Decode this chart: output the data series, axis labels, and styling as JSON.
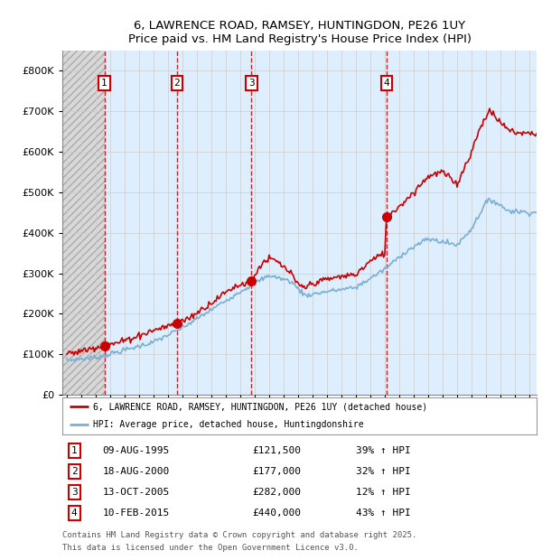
{
  "title": "6, LAWRENCE ROAD, RAMSEY, HUNTINGDON, PE26 1UY",
  "subtitle": "Price paid vs. HM Land Registry's House Price Index (HPI)",
  "ylim": [
    0,
    850000
  ],
  "yticks": [
    0,
    100000,
    200000,
    300000,
    400000,
    500000,
    600000,
    700000,
    800000
  ],
  "ytick_labels": [
    "£0",
    "£100K",
    "£200K",
    "£300K",
    "£400K",
    "£500K",
    "£600K",
    "£700K",
    "£800K"
  ],
  "xlim_start": 1992.7,
  "xlim_end": 2025.5,
  "purchases": [
    {
      "label": "1",
      "date": "09-AUG-1995",
      "year": 1995.61,
      "price": 121500,
      "hpi_pct": "39% ↑ HPI"
    },
    {
      "label": "2",
      "date": "18-AUG-2000",
      "year": 2000.63,
      "price": 177000,
      "hpi_pct": "32% ↑ HPI"
    },
    {
      "label": "3",
      "date": "13-OCT-2005",
      "year": 2005.78,
      "price": 282000,
      "hpi_pct": "12% ↑ HPI"
    },
    {
      "label": "4",
      "date": "10-FEB-2015",
      "year": 2015.11,
      "price": 440000,
      "hpi_pct": "43% ↑ HPI"
    }
  ],
  "hpi_line_color": "#7bafd4",
  "price_line_color": "#cc0000",
  "grid_color": "#cccccc",
  "bg_color": "#ddeeff",
  "hatch_bg_color": "#d8d8d8",
  "legend_line1": "6, LAWRENCE ROAD, RAMSEY, HUNTINGDON, PE26 1UY (detached house)",
  "legend_line2": "HPI: Average price, detached house, Huntingdonshire",
  "footer1": "Contains HM Land Registry data © Crown copyright and database right 2025.",
  "footer2": "This data is licensed under the Open Government Licence v3.0.",
  "xtick_years": [
    1993,
    1994,
    1995,
    1996,
    1997,
    1998,
    1999,
    2000,
    2001,
    2002,
    2003,
    2004,
    2005,
    2006,
    2007,
    2008,
    2009,
    2010,
    2011,
    2012,
    2013,
    2014,
    2015,
    2016,
    2017,
    2018,
    2019,
    2020,
    2021,
    2022,
    2023,
    2024,
    2025
  ]
}
